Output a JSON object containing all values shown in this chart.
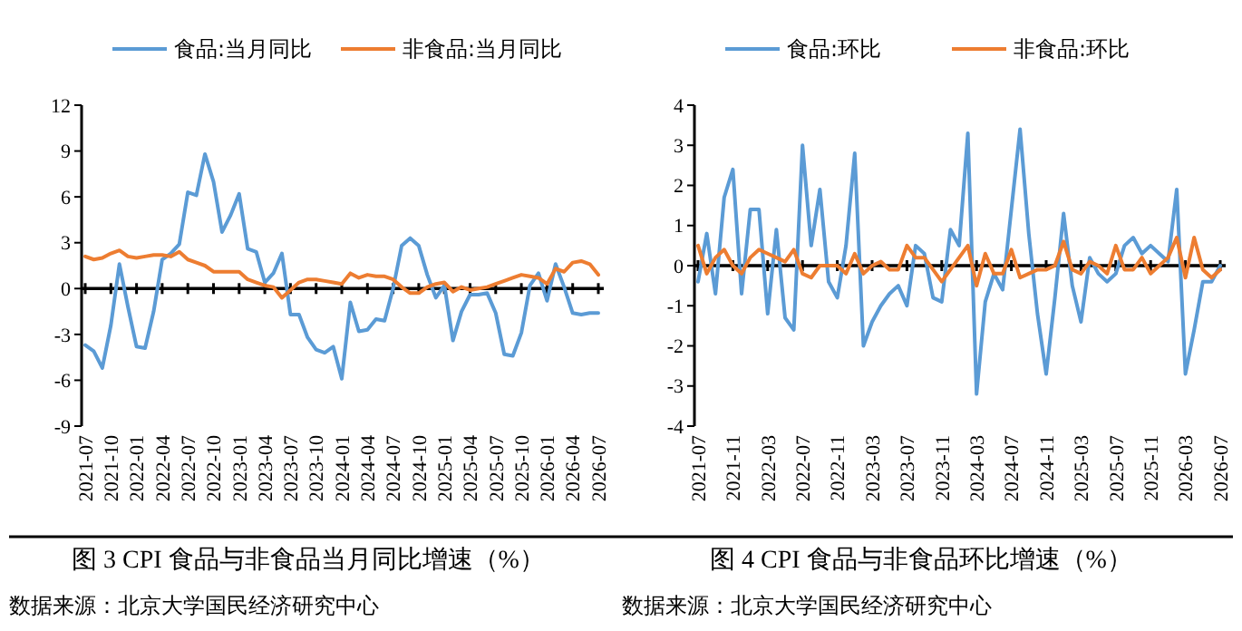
{
  "chart_data": [
    {
      "type": "line",
      "legend": "top",
      "ylim": [
        -9,
        12
      ],
      "yticks": [
        -9,
        -6,
        -3,
        0,
        3,
        6,
        9,
        12
      ],
      "categories": [
        "2021-07",
        null,
        null,
        "2021-10",
        null,
        null,
        "2022-01",
        null,
        null,
        "2022-04",
        null,
        null,
        "2022-07",
        null,
        null,
        "2022-10",
        null,
        null,
        "2023-01",
        null,
        null,
        "2023-04",
        null,
        null,
        "2023-07",
        null,
        null,
        "2023-10",
        null,
        null,
        "2024-01",
        null,
        null,
        "2024-04",
        null,
        null,
        "2024-07",
        null,
        null,
        "2024-10",
        null,
        null,
        "2025-01",
        null,
        null,
        "2025-04",
        null,
        null,
        "2025-07",
        null,
        null,
        "2025-10",
        null,
        null,
        "2026-01",
        null,
        null,
        "2026-04",
        null,
        null,
        "2026-07"
      ],
      "series": [
        {
          "name": "食品:当月同比",
          "color": "#5b9bd5",
          "values": [
            -3.7,
            -4.1,
            -5.2,
            -2.4,
            1.6,
            -1.2,
            -3.8,
            -3.9,
            -1.5,
            1.9,
            2.3,
            2.9,
            6.3,
            6.1,
            8.8,
            7.0,
            3.7,
            4.8,
            6.2,
            2.6,
            2.4,
            0.4,
            1.0,
            2.3,
            -1.7,
            -1.7,
            -3.2,
            -4.0,
            -4.2,
            -3.8,
            -5.9,
            -0.9,
            -2.8,
            -2.7,
            -2.0,
            -2.1,
            0.0,
            2.8,
            3.3,
            2.8,
            0.9,
            -0.6,
            0.2,
            -3.4,
            -1.5,
            -0.4,
            -0.4,
            -0.3,
            -1.6,
            -4.3,
            -4.4,
            -2.9,
            0.2,
            1.0,
            -0.8,
            1.6,
            0.1,
            -1.6,
            -1.7,
            -1.6,
            -1.6
          ]
        },
        {
          "name": "非食品:当月同比",
          "color": "#ed7d31",
          "values": [
            2.1,
            1.9,
            2.0,
            2.3,
            2.5,
            2.1,
            2.0,
            2.1,
            2.2,
            2.2,
            2.1,
            2.4,
            1.9,
            1.7,
            1.5,
            1.1,
            1.1,
            1.1,
            1.1,
            0.6,
            0.4,
            0.2,
            0.1,
            -0.6,
            -0.1,
            0.4,
            0.6,
            0.6,
            0.5,
            0.4,
            0.3,
            1.0,
            0.7,
            0.9,
            0.8,
            0.8,
            0.6,
            0.1,
            -0.3,
            -0.3,
            0.1,
            0.3,
            0.4,
            -0.2,
            0.1,
            -0.1,
            0.0,
            0.1,
            0.3,
            0.5,
            0.7,
            0.9,
            0.8,
            0.7,
            0.3,
            1.3,
            1.1,
            1.7,
            1.8,
            1.6,
            0.9
          ]
        }
      ],
      "annotations": [
        "图 3 CPI 食品与非食品当月同比增速（%）",
        "数据来源：北京大学国民经济研究中心"
      ]
    },
    {
      "type": "line",
      "legend": "top",
      "ylim": [
        -4,
        4
      ],
      "yticks": [
        -4,
        -3,
        -2,
        -1,
        0,
        1,
        2,
        3,
        4
      ],
      "categories": [
        "2021-07",
        null,
        null,
        null,
        "2021-11",
        null,
        null,
        null,
        "2022-03",
        null,
        null,
        null,
        "2022-07",
        null,
        null,
        null,
        "2022-11",
        null,
        null,
        null,
        "2023-03",
        null,
        null,
        null,
        "2023-07",
        null,
        null,
        null,
        "2023-11",
        null,
        null,
        null,
        "2024-03",
        null,
        null,
        null,
        "2024-07",
        null,
        null,
        null,
        "2024-11",
        null,
        null,
        null,
        "2025-03",
        null,
        null,
        null,
        "2025-07",
        null,
        null,
        null,
        "2025-11",
        null,
        null,
        null,
        "2026-03",
        null,
        null,
        null,
        "2026-07"
      ],
      "series": [
        {
          "name": "食品:环比",
          "color": "#5b9bd5",
          "values": [
            -0.4,
            0.8,
            -0.7,
            1.7,
            2.4,
            -0.7,
            1.4,
            1.4,
            -1.2,
            0.9,
            -1.3,
            -1.6,
            3.0,
            0.5,
            1.9,
            -0.4,
            -0.8,
            0.5,
            2.8,
            -2.0,
            -1.4,
            -1.0,
            -0.7,
            -0.5,
            -1.0,
            0.5,
            0.3,
            -0.8,
            -0.9,
            0.9,
            0.5,
            3.3,
            -3.2,
            -0.9,
            -0.2,
            -0.6,
            1.4,
            3.4,
            0.8,
            -1.2,
            -2.7,
            -0.8,
            1.3,
            -0.5,
            -1.4,
            0.2,
            -0.2,
            -0.4,
            -0.2,
            0.5,
            0.7,
            0.3,
            0.5,
            0.3,
            0.1,
            1.9,
            -2.7,
            -1.6,
            -0.4,
            -0.4,
            0.0
          ]
        },
        {
          "name": "非食品:环比",
          "color": "#ed7d31",
          "values": [
            0.5,
            -0.2,
            0.2,
            0.4,
            0.0,
            -0.2,
            0.2,
            0.4,
            0.3,
            0.2,
            0.1,
            0.4,
            -0.2,
            -0.3,
            0.0,
            0.0,
            0.0,
            -0.2,
            0.3,
            -0.2,
            0.0,
            0.1,
            -0.1,
            -0.1,
            0.5,
            0.2,
            0.2,
            -0.1,
            -0.4,
            -0.1,
            0.2,
            0.5,
            -0.5,
            0.3,
            -0.2,
            -0.2,
            0.4,
            -0.3,
            -0.2,
            -0.1,
            -0.1,
            0.0,
            0.6,
            -0.1,
            -0.2,
            0.1,
            0.0,
            -0.2,
            0.5,
            -0.1,
            -0.1,
            0.2,
            -0.2,
            0.0,
            0.2,
            0.7,
            -0.3,
            0.7,
            -0.1,
            -0.3,
            -0.1
          ]
        }
      ],
      "annotations": [
        "图 4 CPI 食品与非食品环比增速（%）",
        "数据来源：北京大学国民经济研究中心"
      ]
    }
  ]
}
